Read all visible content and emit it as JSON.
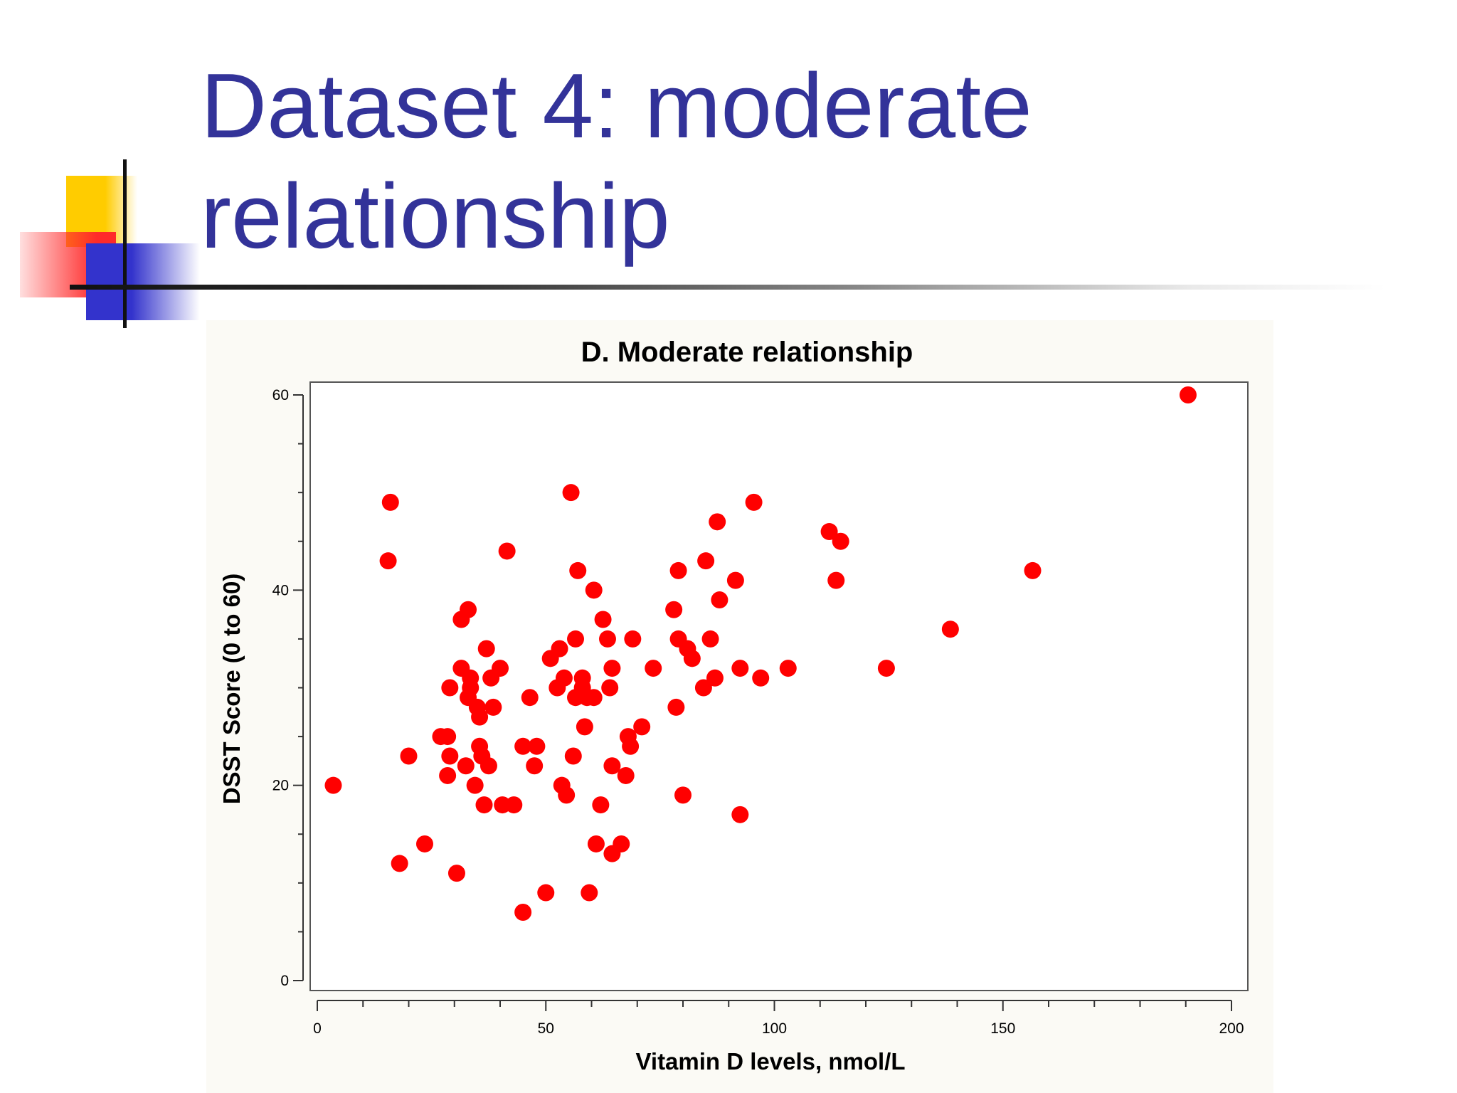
{
  "slide": {
    "title_line1": "Dataset 4: moderate",
    "title_line2": "relationship",
    "title_color": "#333399"
  },
  "decoration": {
    "yellow": "#ffcc00",
    "red": "#ff2a2a",
    "blue": "#3333cc"
  },
  "chart_data": {
    "type": "scatter",
    "title": "D. Moderate relationship",
    "xlabel": "Vitamin D levels, nmol/L",
    "ylabel": "DSST Score (0 to 60)",
    "xlim": [
      0,
      200
    ],
    "ylim": [
      0,
      60
    ],
    "x_ticks": [
      0,
      50,
      100,
      150,
      200
    ],
    "y_ticks": [
      0,
      20,
      40,
      60
    ],
    "grid": false,
    "legend": "none",
    "marker_color": "#ff0000",
    "points": [
      [
        3.5,
        20
      ],
      [
        15.5,
        43
      ],
      [
        16,
        49
      ],
      [
        18,
        12
      ],
      [
        20,
        23
      ],
      [
        23.5,
        14
      ],
      [
        27,
        25
      ],
      [
        28.5,
        25
      ],
      [
        28.5,
        21
      ],
      [
        29,
        23
      ],
      [
        29,
        30
      ],
      [
        30.5,
        11
      ],
      [
        31.5,
        37
      ],
      [
        31.5,
        32
      ],
      [
        32.5,
        22
      ],
      [
        33,
        38
      ],
      [
        33,
        29
      ],
      [
        33.5,
        30
      ],
      [
        33.5,
        31
      ],
      [
        34.5,
        20
      ],
      [
        35,
        28
      ],
      [
        35.5,
        27
      ],
      [
        35.5,
        24
      ],
      [
        36,
        23
      ],
      [
        36.5,
        18
      ],
      [
        37,
        34
      ],
      [
        37.5,
        22
      ],
      [
        38,
        31
      ],
      [
        38.5,
        28
      ],
      [
        40,
        32
      ],
      [
        40.5,
        18
      ],
      [
        41.5,
        44
      ],
      [
        43,
        18
      ],
      [
        45,
        7
      ],
      [
        45,
        24
      ],
      [
        46.5,
        29
      ],
      [
        47.5,
        22
      ],
      [
        48,
        24
      ],
      [
        50,
        9
      ],
      [
        51,
        33
      ],
      [
        52.5,
        30
      ],
      [
        53,
        34
      ],
      [
        53.5,
        20
      ],
      [
        54,
        31
      ],
      [
        54.5,
        19
      ],
      [
        55.5,
        50
      ],
      [
        56,
        23
      ],
      [
        56.5,
        29
      ],
      [
        56.5,
        35
      ],
      [
        57,
        42
      ],
      [
        58,
        31
      ],
      [
        58,
        30
      ],
      [
        58.5,
        26
      ],
      [
        59,
        29
      ],
      [
        59.5,
        9
      ],
      [
        60.5,
        29
      ],
      [
        60.5,
        40
      ],
      [
        61,
        14
      ],
      [
        62,
        18
      ],
      [
        62.5,
        37
      ],
      [
        63.5,
        35
      ],
      [
        64,
        30
      ],
      [
        64.5,
        32
      ],
      [
        64.5,
        22
      ],
      [
        64.5,
        13
      ],
      [
        66.5,
        14
      ],
      [
        67.5,
        21
      ],
      [
        68,
        25
      ],
      [
        68.5,
        24
      ],
      [
        69,
        35
      ],
      [
        71,
        26
      ],
      [
        73.5,
        32
      ],
      [
        78,
        38
      ],
      [
        78.5,
        28
      ],
      [
        79,
        42
      ],
      [
        79,
        35
      ],
      [
        80,
        19
      ],
      [
        81,
        34
      ],
      [
        82,
        33
      ],
      [
        84.5,
        30
      ],
      [
        85,
        43
      ],
      [
        86,
        35
      ],
      [
        87,
        31
      ],
      [
        87.5,
        47
      ],
      [
        88,
        39
      ],
      [
        91.5,
        41
      ],
      [
        92.5,
        17
      ],
      [
        92.5,
        32
      ],
      [
        95.5,
        49
      ],
      [
        97,
        31
      ],
      [
        103,
        32
      ],
      [
        112,
        46
      ],
      [
        113.5,
        41
      ],
      [
        114.5,
        45
      ],
      [
        124.5,
        32
      ],
      [
        138.5,
        36
      ],
      [
        156.5,
        42
      ],
      [
        190.5,
        60
      ]
    ]
  }
}
